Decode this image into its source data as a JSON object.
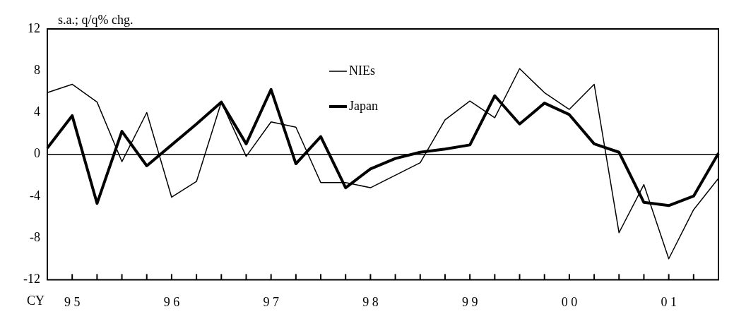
{
  "chart_data": {
    "type": "line",
    "ylabel": "s.a.; q/q% chg.",
    "xlabel": "CY",
    "categories": [
      null,
      "9 5",
      null,
      null,
      null,
      "9 6",
      null,
      null,
      null,
      "9 7",
      null,
      null,
      null,
      "9 8",
      null,
      null,
      null,
      "9 9",
      null,
      null,
      null,
      "0 0",
      null,
      null,
      null,
      "0 1",
      null,
      null
    ],
    "series": [
      {
        "name": "NIEs",
        "color": "#000000",
        "values": [
          5.9,
          6.7,
          5.0,
          -0.7,
          4.0,
          -4.1,
          -2.6,
          5.0,
          -0.2,
          3.1,
          2.6,
          -2.7,
          -2.7,
          -3.2,
          -2.0,
          -0.8,
          3.3,
          5.1,
          3.5,
          8.2,
          5.9,
          4.3,
          6.7,
          -7.5,
          -2.9,
          -10.0,
          -5.3,
          -2.3
        ]
      },
      {
        "name": "Japan",
        "color": "#000000",
        "values": [
          0.6,
          3.7,
          -4.7,
          2.2,
          -1.1,
          0.9,
          2.9,
          5.0,
          1.0,
          6.2,
          -0.9,
          1.7,
          -3.2,
          -1.4,
          -0.4,
          0.2,
          0.5,
          0.9,
          5.6,
          2.9,
          4.9,
          3.8,
          1.0,
          0.2,
          -4.6,
          -4.9,
          -4.0,
          0.1
        ]
      }
    ],
    "ylim": [
      -12,
      12
    ],
    "yticks": [
      -12,
      -8,
      -4,
      0,
      4,
      8,
      12
    ],
    "grid": false,
    "legend": "top",
    "marker": "none",
    "line_style": "solid",
    "ref_lines": [
      {
        "axis": "y",
        "value": 0
      }
    ]
  }
}
